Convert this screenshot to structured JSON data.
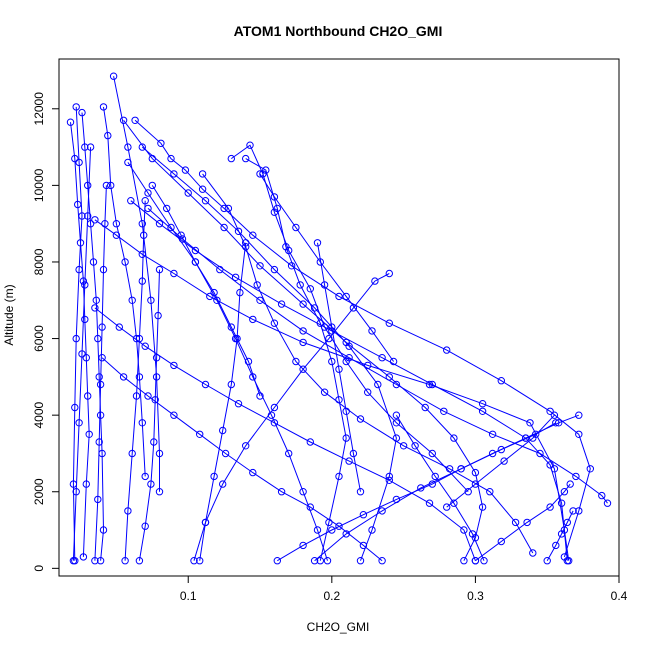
{
  "chart_data": {
    "type": "scatter",
    "title": "ATOM1 Northbound CH2O_GMI",
    "xlabel": "CH2O_GMI",
    "ylabel": "Altitude (m)",
    "xlim": [
      0.01,
      0.4
    ],
    "ylim": [
      -200,
      13300
    ],
    "x_ticks": [
      0.1,
      0.2,
      0.3,
      0.4
    ],
    "x_tick_labels": [
      "0.1",
      "0.2",
      "0.3",
      "0.4"
    ],
    "y_ticks": [
      0,
      2000,
      4000,
      6000,
      8000,
      10000,
      12000
    ],
    "y_tick_labels": [
      "0",
      "2000",
      "4000",
      "6000",
      "8000",
      "10000",
      "12000"
    ],
    "grid": false,
    "colors": {
      "series": "#0000ff",
      "axis": "#000000"
    },
    "series": [
      {
        "style": "lines+open-circles",
        "x": [
          0.048,
          0.058,
          0.068,
          0.074,
          0.078,
          0.08,
          0.08
        ],
        "y": [
          12850,
          11000,
          9000,
          7000,
          5000,
          3000,
          2000
        ]
      },
      {
        "style": "lines+open-circles",
        "x": [
          0.041,
          0.044,
          0.046,
          0.05,
          0.056,
          0.061,
          0.064,
          0.066,
          0.068,
          0.07
        ],
        "y": [
          12050,
          11300,
          10000,
          9000,
          8000,
          7000,
          6000,
          5000,
          3800,
          2400
        ]
      },
      {
        "style": "lines+open-circles",
        "x": [
          0.026,
          0.028,
          0.03,
          0.032,
          0.034,
          0.036,
          0.037,
          0.038,
          0.039,
          0.04,
          0.041,
          0.039
        ],
        "y": [
          11900,
          11000,
          10000,
          9000,
          8000,
          7000,
          6000,
          5000,
          4000,
          3000,
          1000,
          200
        ]
      },
      {
        "style": "lines+open-circles",
        "x": [
          0.018,
          0.021,
          0.023,
          0.025,
          0.027,
          0.028,
          0.029,
          0.03,
          0.031,
          0.029,
          0.027
        ],
        "y": [
          11650,
          10700,
          9500,
          8500,
          7500,
          6500,
          5500,
          4500,
          3500,
          2200,
          300
        ]
      },
      {
        "style": "lines+open-circles",
        "x": [
          0.022,
          0.024,
          0.026,
          0.024,
          0.022,
          0.021,
          0.02,
          0.021
        ],
        "y": [
          12050,
          10600,
          9200,
          7800,
          6000,
          4200,
          2200,
          200
        ]
      },
      {
        "style": "lines+open-circles",
        "x": [
          0.063,
          0.081,
          0.088,
          0.098,
          0.11,
          0.125,
          0.145,
          0.172,
          0.205,
          0.24,
          0.28,
          0.318,
          0.352,
          0.372,
          0.38,
          0.372,
          0.362
        ],
        "y": [
          11700,
          11100,
          10700,
          10400,
          9900,
          9400,
          8700,
          7900,
          7100,
          6400,
          5700,
          4900,
          4100,
          3500,
          2600,
          1500,
          300
        ]
      },
      {
        "style": "lines+open-circles",
        "x": [
          0.055,
          0.075,
          0.1,
          0.125,
          0.15,
          0.18,
          0.21,
          0.24,
          0.265,
          0.285,
          0.3,
          0.305,
          0.3,
          0.292
        ],
        "y": [
          11700,
          10700,
          9800,
          8900,
          7900,
          6900,
          5900,
          5000,
          4200,
          3400,
          2500,
          1600,
          800,
          200
        ]
      },
      {
        "style": "lines+open-circles",
        "x": [
          0.068,
          0.09,
          0.112,
          0.135,
          0.16,
          0.188,
          0.212,
          0.232,
          0.245,
          0.24,
          0.228,
          0.22
        ],
        "y": [
          11000,
          10300,
          9600,
          8800,
          7800,
          6800,
          5800,
          4800,
          3400,
          2400,
          1000,
          200
        ]
      },
      {
        "style": "lines+open-circles",
        "x": [
          0.13,
          0.143,
          0.152,
          0.16,
          0.17,
          0.185,
          0.195,
          0.21,
          0.225,
          0.245,
          0.27,
          0.295
        ],
        "y": [
          10700,
          11050,
          10300,
          9300,
          8300,
          7300,
          6300,
          5400,
          4600,
          3800,
          3000,
          2000
        ]
      },
      {
        "style": "lines+open-circles",
        "x": [
          0.058,
          0.072,
          0.088,
          0.105,
          0.12,
          0.133,
          0.145,
          0.158,
          0.17,
          0.18,
          0.19,
          0.197
        ],
        "y": [
          10600,
          9800,
          8900,
          8000,
          7000,
          6000,
          5000,
          4000,
          3000,
          2000,
          1000,
          200
        ]
      },
      {
        "style": "lines+open-circles",
        "x": [
          0.14,
          0.154,
          0.162,
          0.168,
          0.178,
          0.192,
          0.2,
          0.205,
          0.21,
          0.205,
          0.198,
          0.192
        ],
        "y": [
          10700,
          10400,
          9400,
          8400,
          7400,
          6400,
          5400,
          4400,
          3400,
          2400,
          1200,
          200
        ]
      },
      {
        "style": "lines+open-circles",
        "x": [
          0.035,
          0.05,
          0.068,
          0.09,
          0.115,
          0.145,
          0.18,
          0.225,
          0.268,
          0.305,
          0.338,
          0.355,
          0.362,
          0.365
        ],
        "y": [
          9100,
          8700,
          8200,
          7700,
          7100,
          6500,
          5900,
          5300,
          4800,
          4300,
          3800,
          2600,
          1000,
          200
        ]
      },
      {
        "style": "lines+open-circles",
        "x": [
          0.06,
          0.08,
          0.105,
          0.133,
          0.165,
          0.2,
          0.235,
          0.27,
          0.305,
          0.335,
          0.352,
          0.36,
          0.364
        ],
        "y": [
          9600,
          9000,
          8300,
          7600,
          6900,
          6200,
          5500,
          4800,
          4100,
          3400,
          2700,
          1700,
          200
        ]
      },
      {
        "style": "lines+open-circles",
        "x": [
          0.072,
          0.096,
          0.122,
          0.15,
          0.18,
          0.212,
          0.245,
          0.278,
          0.312,
          0.345,
          0.37,
          0.388,
          0.392
        ],
        "y": [
          9400,
          8600,
          7800,
          7000,
          6200,
          5500,
          4800,
          4100,
          3500,
          3000,
          2400,
          1900,
          1700
        ]
      },
      {
        "style": "lines+open-circles",
        "x": [
          0.11,
          0.128,
          0.14,
          0.148,
          0.16,
          0.175,
          0.195,
          0.22,
          0.25,
          0.282,
          0.31,
          0.328,
          0.34
        ],
        "y": [
          10300,
          9400,
          8400,
          7400,
          6400,
          5400,
          4600,
          3900,
          3200,
          2600,
          2000,
          1200,
          400
        ]
      },
      {
        "style": "lines+open-circles",
        "x": [
          0.035,
          0.052,
          0.07,
          0.09,
          0.112,
          0.135,
          0.16,
          0.185,
          0.212,
          0.24,
          0.268,
          0.292,
          0.3
        ],
        "y": [
          6800,
          6300,
          5800,
          5300,
          4800,
          4300,
          3800,
          3300,
          2800,
          2300,
          1700,
          1000,
          200
        ]
      },
      {
        "style": "lines+open-circles",
        "x": [
          0.04,
          0.055,
          0.072,
          0.09,
          0.108,
          0.126,
          0.145,
          0.165,
          0.185,
          0.205,
          0.222,
          0.235
        ],
        "y": [
          5500,
          5000,
          4500,
          4000,
          3500,
          3000,
          2500,
          2000,
          1600,
          1100,
          600,
          200
        ]
      },
      {
        "style": "lines+open-circles",
        "x": [
          0.104,
          0.112,
          0.124,
          0.14,
          0.16,
          0.18,
          0.198,
          0.215,
          0.23,
          0.24
        ],
        "y": [
          200,
          1200,
          2200,
          3200,
          4200,
          5200,
          6000,
          6800,
          7500,
          7700
        ]
      },
      {
        "style": "lines+open-circles",
        "x": [
          0.162,
          0.18,
          0.2,
          0.222,
          0.245,
          0.27,
          0.29,
          0.312,
          0.335,
          0.358,
          0.372
        ],
        "y": [
          200,
          600,
          1000,
          1400,
          1800,
          2200,
          2600,
          3000,
          3400,
          3800,
          4000
        ]
      },
      {
        "style": "lines+open-circles",
        "x": [
          0.188,
          0.21,
          0.235,
          0.262,
          0.29,
          0.318,
          0.342,
          0.356
        ],
        "y": [
          200,
          900,
          1500,
          2100,
          2600,
          3100,
          3500,
          3800
        ]
      },
      {
        "style": "lines+open-circles",
        "x": [
          0.108,
          0.112,
          0.118,
          0.124,
          0.13,
          0.134,
          0.136,
          0.14
        ],
        "y": [
          200,
          1200,
          2400,
          3600,
          4800,
          6000,
          7200,
          8500
        ]
      },
      {
        "style": "lines+open-circles",
        "x": [
          0.066,
          0.07,
          0.074,
          0.076,
          0.077,
          0.078,
          0.079,
          0.08
        ],
        "y": [
          200,
          1100,
          2200,
          3300,
          4400,
          5500,
          6600,
          7800
        ]
      },
      {
        "style": "lines+open-circles",
        "x": [
          0.056,
          0.058,
          0.061,
          0.064,
          0.066,
          0.068,
          0.069,
          0.07
        ],
        "y": [
          200,
          1500,
          3000,
          4500,
          6000,
          7500,
          8700,
          9600
        ]
      },
      {
        "style": "lines+open-circles",
        "x": [
          0.035,
          0.037,
          0.038,
          0.039,
          0.04,
          0.041,
          0.042,
          0.043
        ],
        "y": [
          200,
          1800,
          3300,
          4800,
          6300,
          7800,
          9000,
          10000
        ]
      },
      {
        "style": "lines+open-circles",
        "x": [
          0.02,
          0.022,
          0.024,
          0.026,
          0.028,
          0.03,
          0.032
        ],
        "y": [
          200,
          2000,
          3800,
          5600,
          7400,
          9200,
          11000
        ]
      },
      {
        "style": "lines+open-circles",
        "x": [
          0.075,
          0.085,
          0.095,
          0.105,
          0.118,
          0.13,
          0.142,
          0.15
        ],
        "y": [
          10000,
          9400,
          8700,
          8000,
          7200,
          6300,
          5400,
          4500
        ]
      },
      {
        "style": "lines+open-circles",
        "x": [
          0.15,
          0.16,
          0.175,
          0.192,
          0.21,
          0.228,
          0.243
        ],
        "y": [
          10300,
          9700,
          8900,
          8000,
          7100,
          6200,
          5400
        ]
      },
      {
        "style": "lines+open-circles",
        "x": [
          0.19,
          0.195,
          0.2,
          0.205,
          0.21,
          0.215,
          0.22
        ],
        "y": [
          8500,
          7400,
          6300,
          5200,
          4100,
          3000,
          2000
        ]
      },
      {
        "style": "lines+open-circles",
        "x": [
          0.245,
          0.258,
          0.272,
          0.285,
          0.298,
          0.306
        ],
        "y": [
          4000,
          3200,
          2400,
          1700,
          900,
          200
        ]
      },
      {
        "style": "lines+open-circles",
        "x": [
          0.3,
          0.318,
          0.336,
          0.352,
          0.362,
          0.366
        ],
        "y": [
          200,
          700,
          1200,
          1600,
          2000,
          2200
        ]
      },
      {
        "style": "lines+open-circles",
        "x": [
          0.35,
          0.356,
          0.36,
          0.364,
          0.368
        ],
        "y": [
          200,
          600,
          900,
          1200,
          1500
        ]
      },
      {
        "style": "lines+open-circles",
        "x": [
          0.28,
          0.3,
          0.32,
          0.34,
          0.355
        ],
        "y": [
          1600,
          2200,
          2800,
          3400,
          4000
        ]
      }
    ]
  }
}
